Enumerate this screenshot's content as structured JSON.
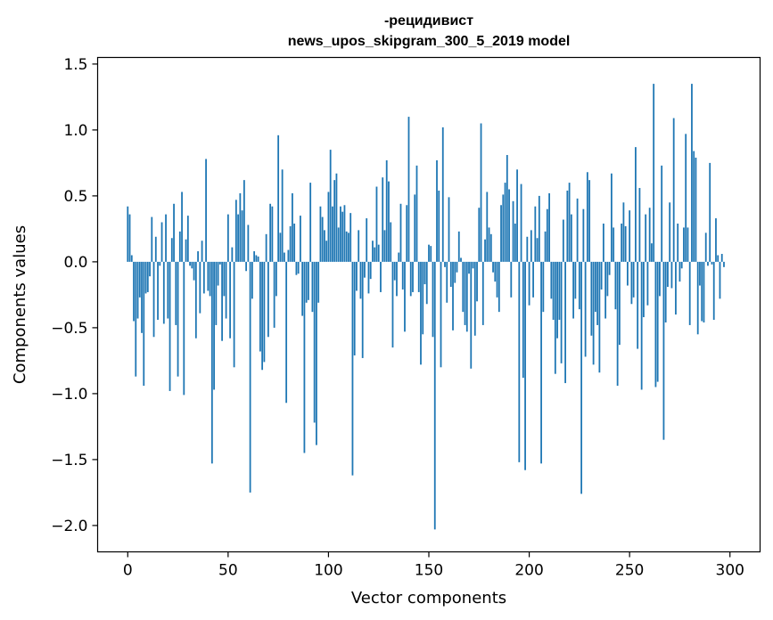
{
  "chart_data": {
    "type": "bar",
    "title_line1": "-рецидивист",
    "title_line2": "news_upos_skipgram_300_5_2019 model",
    "xlabel": "Vector components",
    "ylabel": "Components values",
    "xlim": [
      -15,
      315
    ],
    "ylim": [
      -2.2,
      1.55
    ],
    "x_ticks": [
      0,
      50,
      100,
      150,
      200,
      250,
      300
    ],
    "y_ticks": [
      1.5,
      1.0,
      0.5,
      0.0,
      -0.5,
      -1.0,
      -1.5,
      -2.0
    ],
    "x_tick_labels": [
      "0",
      "50",
      "100",
      "150",
      "200",
      "250",
      "300"
    ],
    "y_tick_labels": [
      "1.5",
      "1.0",
      "0.5",
      "0.0",
      "−0.5",
      "−1.0",
      "−1.5",
      "−2.0"
    ],
    "bar_color": "#1f77b4",
    "values": [
      0.42,
      0.36,
      0.05,
      -0.45,
      -0.87,
      -0.43,
      -0.27,
      -0.54,
      -0.94,
      -0.24,
      -0.23,
      -0.11,
      0.34,
      -0.57,
      0.19,
      -0.44,
      -0.03,
      0.3,
      -0.47,
      0.36,
      -0.43,
      -0.98,
      0.18,
      0.44,
      -0.48,
      -0.87,
      0.23,
      0.53,
      -1.01,
      0.17,
      0.35,
      -0.03,
      -0.05,
      -0.14,
      -0.58,
      0.08,
      -0.39,
      0.16,
      -0.24,
      0.78,
      -0.22,
      -0.26,
      -1.53,
      -0.97,
      -0.48,
      -0.18,
      -0.02,
      -0.6,
      -0.26,
      -0.43,
      0.36,
      -0.58,
      0.11,
      -0.8,
      0.47,
      0.36,
      0.52,
      0.39,
      0.62,
      -0.07,
      0.28,
      -1.75,
      -0.28,
      0.08,
      0.05,
      0.04,
      -0.68,
      -0.82,
      -0.76,
      0.21,
      -0.57,
      0.44,
      0.42,
      -0.5,
      -0.26,
      0.96,
      0.22,
      0.7,
      0.07,
      -1.07,
      0.09,
      0.27,
      0.52,
      0.29,
      -0.1,
      -0.09,
      0.35,
      -0.41,
      -1.45,
      -0.31,
      -0.29,
      0.6,
      -0.38,
      -1.22,
      -1.39,
      -0.31,
      0.42,
      0.34,
      0.24,
      0.16,
      0.53,
      0.85,
      0.42,
      0.62,
      0.67,
      0.26,
      0.42,
      0.38,
      0.43,
      0.23,
      0.22,
      0.37,
      -1.62,
      -0.71,
      -0.22,
      0.24,
      -0.28,
      -0.73,
      -0.12,
      0.33,
      -0.24,
      -0.13,
      0.16,
      0.11,
      0.57,
      0.13,
      -0.23,
      0.64,
      0.24,
      0.77,
      0.61,
      0.3,
      -0.65,
      -0.14,
      -0.26,
      0.07,
      0.44,
      -0.21,
      -0.53,
      0.43,
      1.1,
      -0.26,
      -0.23,
      0.51,
      0.73,
      -0.23,
      -0.78,
      -0.55,
      -0.17,
      -0.32,
      0.13,
      0.12,
      -0.57,
      -2.03,
      0.77,
      0.54,
      -0.8,
      1.02,
      -0.04,
      -0.31,
      0.49,
      -0.19,
      -0.52,
      -0.16,
      -0.08,
      0.23,
      0.03,
      -0.38,
      -0.48,
      -0.53,
      -0.09,
      -0.81,
      -0.05,
      -0.56,
      -0.3,
      0.41,
      1.05,
      -0.48,
      0.17,
      0.53,
      0.26,
      0.21,
      -0.08,
      -0.15,
      -0.27,
      -0.38,
      0.43,
      0.51,
      0.6,
      0.81,
      0.55,
      -0.27,
      0.46,
      0.29,
      0.7,
      -1.52,
      0.59,
      -0.88,
      -1.58,
      0.19,
      -0.33,
      0.24,
      -0.27,
      0.42,
      0.18,
      0.5,
      -1.53,
      -0.38,
      0.23,
      0.4,
      0.52,
      -0.28,
      -0.44,
      -0.85,
      -0.58,
      -0.44,
      -0.77,
      0.32,
      -0.92,
      0.54,
      0.6,
      0.36,
      -0.43,
      -0.28,
      0.48,
      -0.36,
      -1.76,
      0.4,
      -0.72,
      0.68,
      0.62,
      -0.56,
      -0.78,
      -0.38,
      -0.48,
      -0.84,
      -0.21,
      0.29,
      -0.43,
      -0.26,
      -0.1,
      0.67,
      0.26,
      -0.36,
      -0.94,
      -0.63,
      0.29,
      0.45,
      0.27,
      -0.18,
      0.39,
      -0.32,
      -0.27,
      0.87,
      -0.66,
      0.56,
      -0.97,
      -0.42,
      0.36,
      -0.33,
      0.41,
      0.14,
      1.35,
      -0.95,
      -0.91,
      -0.26,
      0.73,
      -1.35,
      -0.46,
      -0.19,
      0.45,
      -0.2,
      1.09,
      -0.4,
      0.29,
      -0.15,
      -0.05,
      0.26,
      0.97,
      0.26,
      -0.48,
      1.35,
      0.84,
      0.79,
      -0.55,
      -0.18,
      -0.45,
      -0.46,
      0.22,
      -0.03,
      0.75,
      -0.02,
      -0.44,
      0.33,
      0.05,
      -0.28,
      0.06,
      -0.04
    ]
  }
}
